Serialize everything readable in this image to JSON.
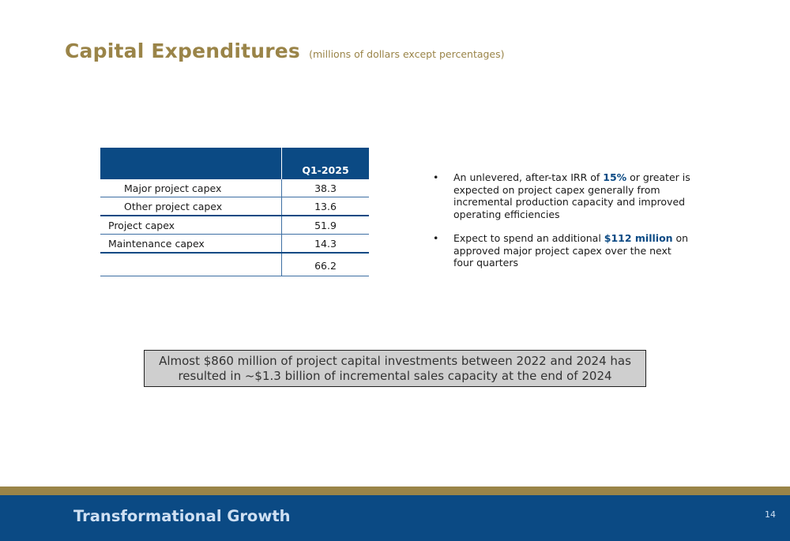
{
  "header": {
    "title": "Capital Expenditures",
    "subtitle": "(millions of dollars except percentages)"
  },
  "table": {
    "column_header": "Q1-2025",
    "rows": [
      {
        "label": "Major project capex",
        "value": "38.3"
      },
      {
        "label": "Other project capex",
        "value": "13.6"
      },
      {
        "label": "Project capex",
        "value": "51.9"
      },
      {
        "label": "Maintenance capex",
        "value": "14.3"
      },
      {
        "label": "",
        "value": "66.2"
      }
    ]
  },
  "bullets": {
    "b1_pre": "An unlevered, after-tax IRR  of ",
    "b1_hl": "15%",
    "b1_post": " or greater is expected on project capex generally from incremental production capacity and improved operating efficiencies",
    "b2_pre": "Expect to spend an additional ",
    "b2_hl": "$112 million",
    "b2_post": " on approved major project capex over the next four quarters",
    "marker": "•"
  },
  "callout": {
    "line1": "Almost $860 million of project capital investments between 2022 and 2024 has",
    "line2": "resulted in ~$1.3 billion of incremental sales capacity at the end of 2024"
  },
  "footer": {
    "title": "Transformational Growth",
    "page_number": "14"
  },
  "colors": {
    "brand_gold": "#9a8448",
    "brand_blue": "#0b4a84"
  }
}
